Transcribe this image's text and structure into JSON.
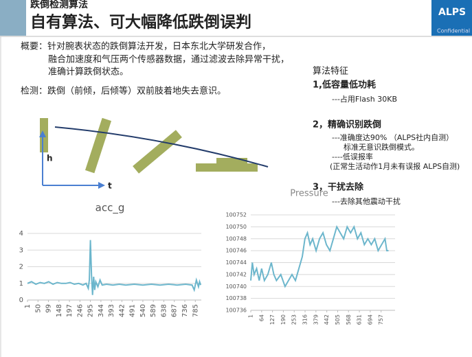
{
  "header": {
    "subtitle": "跌倒检测算法",
    "title": "自有算法、可大幅降低跌倒误判",
    "logo": "ALPS",
    "confidential": "Confidential"
  },
  "overview": [
    "概要：针对腕表状态的跌倒算法开发，日本东北大学研发合作，",
    "融合加速度和气压两个传感器数据，通过滤波去除异常干扰，",
    "准确计算跌倒状态。"
  ],
  "detection": "检测：跌倒（前倾，后倾等）双前肢着地失去意识。",
  "illustration": {
    "y_label": "h",
    "x_label": "t"
  },
  "features": {
    "title": "算法特征",
    "items": [
      {
        "heading": "1,低容量低功耗",
        "lines": [
          "---占用Flash 30KB"
        ]
      },
      {
        "heading": "2，精确识别跌倒",
        "lines": [
          "---准确度达90% （ALPS社内自测）",
          "标准无意识跌倒模式。",
          "----低误报率",
          "(正常生活动作1月未有误报 ALPS自测)"
        ]
      },
      {
        "heading": "3，干扰去除",
        "lines": [
          "---去除其他震动干扰"
        ]
      }
    ]
  },
  "chart_data": [
    {
      "type": "line",
      "title": "acc_g",
      "color": "#6cb6cc",
      "grid": true,
      "x": [
        1,
        20,
        40,
        60,
        80,
        100,
        120,
        140,
        160,
        180,
        200,
        220,
        240,
        260,
        275,
        285,
        290,
        295,
        300,
        305,
        310,
        315,
        320,
        330,
        340,
        350,
        370,
        400,
        430,
        460,
        500,
        540,
        580,
        620,
        660,
        700,
        740,
        770,
        780,
        790,
        800,
        805,
        810
      ],
      "values": [
        1.0,
        1.1,
        0.95,
        1.05,
        1.0,
        1.1,
        0.95,
        1.05,
        1.0,
        1.0,
        1.05,
        0.95,
        1.0,
        0.9,
        1.0,
        0.7,
        1.2,
        3.6,
        1.5,
        0.3,
        1.4,
        0.6,
        1.1,
        0.8,
        1.2,
        0.9,
        0.95,
        0.9,
        0.95,
        0.9,
        0.95,
        0.9,
        0.95,
        0.9,
        0.95,
        0.9,
        0.95,
        0.9,
        0.6,
        1.2,
        0.8,
        1.1,
        0.9
      ],
      "xlim": [
        1,
        813
      ],
      "ylim": [
        0,
        4
      ],
      "yticks": [
        0,
        1,
        2,
        3,
        4
      ],
      "xticks": [
        1,
        50,
        99,
        148,
        197,
        246,
        295,
        344,
        393,
        442,
        491,
        540,
        589,
        638,
        687,
        736,
        785
      ]
    },
    {
      "type": "line",
      "title": "Pressure",
      "color": "#6cb6cc",
      "grid": true,
      "x": [
        1,
        10,
        20,
        35,
        50,
        64,
        80,
        100,
        120,
        135,
        150,
        175,
        200,
        220,
        240,
        260,
        280,
        300,
        315,
        330,
        345,
        360,
        380,
        400,
        420,
        440,
        460,
        480,
        500,
        520,
        540,
        560,
        580,
        600,
        620,
        640,
        660,
        680,
        700,
        720,
        740,
        760,
        780,
        790,
        800
      ],
      "values": [
        100741,
        100744,
        100742,
        100743,
        100741,
        100743,
        100741,
        100742,
        100744,
        100742,
        100741,
        100742,
        100740,
        100741,
        100742,
        100741,
        100743,
        100745,
        100748,
        100749,
        100747,
        100748,
        100746,
        100748,
        100749,
        100747,
        100746,
        100748,
        100750,
        100749,
        100748,
        100750,
        100749,
        100750,
        100748,
        100749,
        100747,
        100748,
        100747,
        100748,
        100746,
        100747,
        100748,
        100746,
        100746
      ],
      "xlim": [
        1,
        838
      ],
      "ylim": [
        100736,
        100752
      ],
      "yticks": [
        100736,
        100738,
        100740,
        100742,
        100744,
        100746,
        100748,
        100750,
        100752
      ],
      "xticks": [
        1,
        64,
        127,
        190,
        253,
        316,
        379,
        442,
        505,
        568,
        631,
        694,
        757
      ]
    }
  ]
}
